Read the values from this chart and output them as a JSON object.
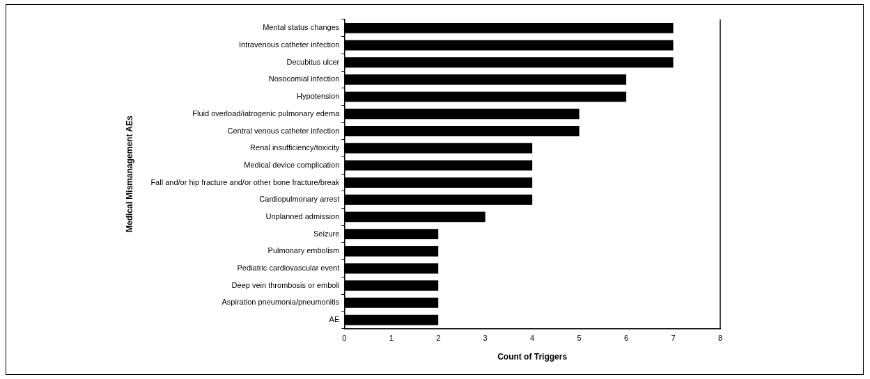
{
  "chart_data": {
    "type": "bar",
    "orientation": "horizontal",
    "xlabel": "Count of Triggers",
    "ylabel": "Medical Mismanagement AEs",
    "categories": [
      "Mental status changes",
      "Intravenous catheter infection",
      "Decubitus ulcer",
      "Nosocomial infection",
      "Hypotension",
      "Fluid overload/iatrogenic pulmonary edema",
      "Central venous catheter infection",
      "Renal insufficiency/toxicity",
      "Medical device complication",
      "Fall and/or hip fracture and/or other bone fracture/break",
      "Cardiopulmonary arrest",
      "Unplanned admission",
      "Seizure",
      "Pulmonary embolism",
      "Pediatric cardiovascular event",
      "Deep vein thrombosis or emboli",
      "Aspiration pneumonia/pneumonitis",
      "AE"
    ],
    "values": [
      7,
      7,
      7,
      6,
      6,
      5,
      5,
      4,
      4,
      4,
      4,
      3,
      2,
      2,
      2,
      2,
      2,
      2
    ],
    "color": "#000000",
    "xlim": [
      0,
      8
    ],
    "xticks": [
      0,
      1,
      2,
      3,
      4,
      5,
      6,
      7,
      8
    ],
    "grid": false,
    "legend": false
  }
}
